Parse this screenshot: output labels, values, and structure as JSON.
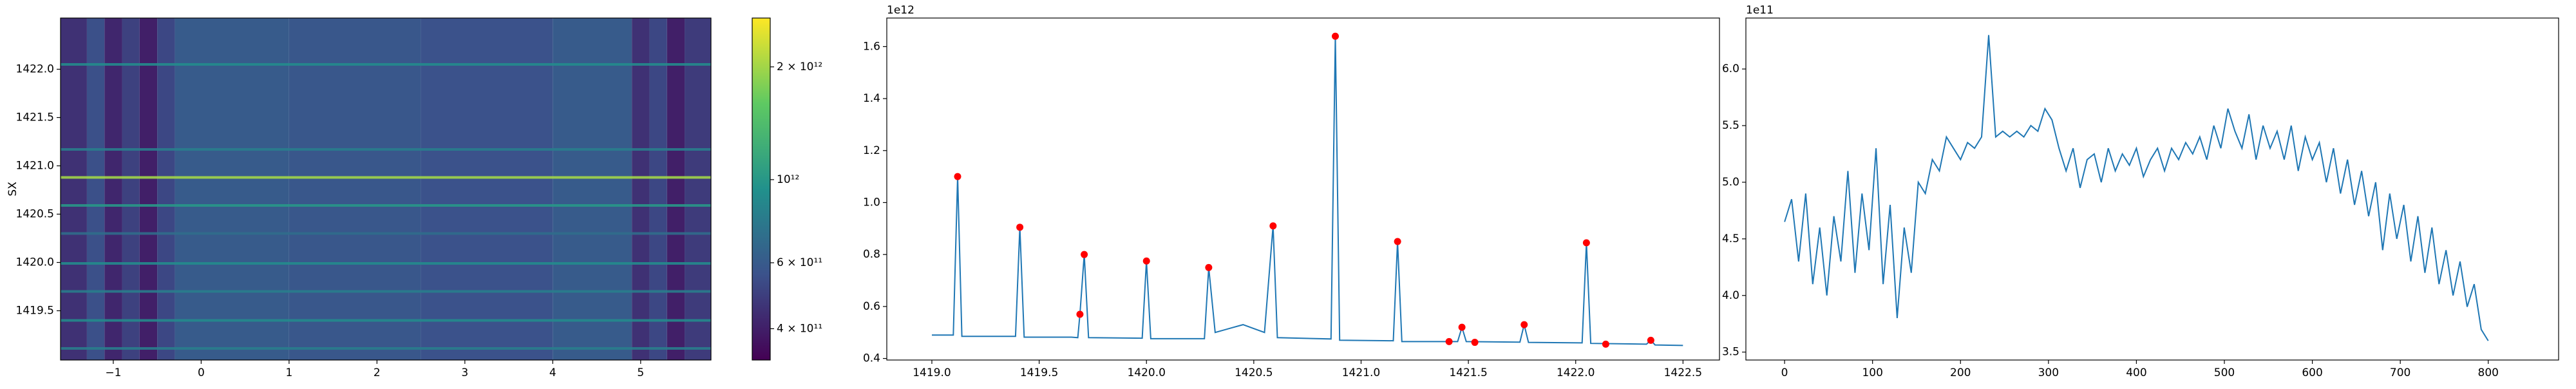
{
  "chart_data": [
    {
      "type": "heatmap",
      "ylabel": "SX",
      "colormap": "viridis",
      "log_scale": true,
      "xlim": [
        -1.6,
        5.8
      ],
      "ylim": [
        1418.99,
        1422.53
      ],
      "xticks": [
        {
          "value": -1,
          "label": "−1"
        },
        0,
        1,
        2,
        3,
        4,
        5
      ],
      "yticks": [
        1419.5,
        {
          "value": 1420,
          "label": "1420.0"
        },
        1420.5,
        {
          "value": 1421,
          "label": "1421.0"
        },
        1421.5,
        {
          "value": 1422,
          "label": "1422.0"
        }
      ],
      "clim": [
        330000000000,
        2700000000000
      ],
      "cticks": [
        {
          "value": 400000000000,
          "label": "4 × 10¹¹"
        },
        {
          "value": 600000000000,
          "label": "6 × 10¹¹"
        },
        {
          "value": 1000000000000,
          "label": "10¹²"
        },
        {
          "value": 2000000000000,
          "label": "2 × 10¹²"
        }
      ],
      "columns": {
        "edges": [
          -1.6,
          -1.3,
          -1.1,
          -0.9,
          -0.7,
          -0.5,
          -0.3,
          1.0,
          2.5,
          4.0,
          4.9,
          5.1,
          5.3,
          5.5,
          5.8
        ],
        "values": [
          450000000000,
          550000000000,
          420000000000,
          500000000000,
          400000000000,
          520000000000,
          600000000000,
          580000000000,
          560000000000,
          600000000000,
          450000000000,
          520000000000,
          400000000000,
          480000000000
        ]
      },
      "stripes": {
        "y": [
          1422.05,
          1421.17,
          1420.88,
          1420.59,
          1420.3,
          1419.99,
          1419.7,
          1419.4,
          1419.11
        ],
        "values": [
          900000000000,
          800000000000,
          2000000000000,
          1000000000000,
          700000000000,
          900000000000,
          800000000000,
          900000000000,
          800000000000
        ]
      }
    },
    {
      "type": "line",
      "offset_text": "1e12",
      "color": "#1f77b4",
      "xlim": [
        1418.79,
        1422.67
      ],
      "ylim": [
        0.394,
        1.71
      ],
      "xticks": [
        {
          "value": 1419,
          "label": "1419.0"
        },
        1419.5,
        {
          "value": 1420,
          "label": "1420.0"
        },
        1420.5,
        {
          "value": 1421,
          "label": "1421.0"
        },
        1421.5,
        {
          "value": 1422,
          "label": "1422.0"
        },
        1422.5
      ],
      "yticks": [
        0.4,
        0.6,
        0.8,
        {
          "value": 1,
          "label": "1.0"
        },
        1.2,
        1.4,
        1.6
      ],
      "x": [
        1419.0,
        1419.1,
        1419.12,
        1419.14,
        1419.39,
        1419.41,
        1419.43,
        1419.65,
        1419.68,
        1419.69,
        1419.71,
        1419.73,
        1419.98,
        1420.0,
        1420.02,
        1420.27,
        1420.29,
        1420.32,
        1420.45,
        1420.55,
        1420.59,
        1420.61,
        1420.86,
        1420.88,
        1420.9,
        1421.15,
        1421.17,
        1421.19,
        1421.45,
        1421.47,
        1421.49,
        1421.74,
        1421.76,
        1421.78,
        1422.03,
        1422.05,
        1422.07,
        1422.33,
        1422.35,
        1422.37,
        1422.5
      ],
      "values": [
        0.49,
        0.49,
        1.1,
        0.485,
        0.485,
        0.905,
        0.482,
        0.482,
        0.48,
        0.57,
        0.8,
        0.48,
        0.478,
        0.775,
        0.476,
        0.476,
        0.75,
        0.5,
        0.53,
        0.5,
        0.91,
        0.48,
        0.475,
        1.64,
        0.47,
        0.468,
        0.85,
        0.465,
        0.465,
        0.52,
        0.465,
        0.463,
        0.53,
        0.462,
        0.46,
        0.845,
        0.458,
        0.455,
        0.47,
        0.452,
        0.45
      ],
      "peaks": {
        "color": "#ff0000",
        "x": [
          1419.12,
          1419.41,
          1419.69,
          1419.71,
          1420.0,
          1420.29,
          1420.59,
          1420.88,
          1421.17,
          1421.41,
          1421.47,
          1421.53,
          1421.76,
          1422.05,
          1422.14,
          1422.35
        ],
        "values": [
          1.1,
          0.905,
          0.57,
          0.8,
          0.775,
          0.75,
          0.91,
          1.64,
          0.85,
          0.465,
          0.52,
          0.462,
          0.53,
          0.845,
          0.455,
          0.47
        ]
      }
    },
    {
      "type": "line",
      "offset_text": "1e11",
      "color": "#1f77b4",
      "xlim": [
        -44,
        880
      ],
      "ylim": [
        3.43,
        6.45
      ],
      "xticks": [
        0,
        100,
        200,
        300,
        400,
        500,
        600,
        700,
        800
      ],
      "yticks": [
        3.5,
        {
          "value": 4,
          "label": "4.0"
        },
        4.5,
        {
          "value": 5,
          "label": "5.0"
        },
        5.5,
        {
          "value": 6,
          "label": "6.0"
        }
      ],
      "x": [
        0,
        8,
        16,
        24,
        32,
        40,
        48,
        56,
        64,
        72,
        80,
        88,
        96,
        104,
        112,
        120,
        128,
        136,
        144,
        152,
        160,
        168,
        176,
        184,
        192,
        200,
        208,
        216,
        224,
        232,
        240,
        248,
        256,
        264,
        272,
        280,
        288,
        296,
        304,
        312,
        320,
        328,
        336,
        344,
        352,
        360,
        368,
        376,
        384,
        392,
        400,
        408,
        416,
        424,
        432,
        440,
        448,
        456,
        464,
        472,
        480,
        488,
        496,
        504,
        512,
        520,
        528,
        536,
        544,
        552,
        560,
        568,
        576,
        584,
        592,
        600,
        608,
        616,
        624,
        632,
        640,
        648,
        656,
        664,
        672,
        680,
        688,
        696,
        704,
        712,
        720,
        728,
        736,
        744,
        752,
        760,
        768,
        776,
        784,
        792,
        800
      ],
      "values": [
        4.65,
        4.85,
        4.3,
        4.9,
        4.1,
        4.6,
        4.0,
        4.7,
        4.3,
        5.1,
        4.2,
        4.9,
        4.4,
        5.3,
        4.1,
        4.8,
        3.8,
        4.6,
        4.2,
        5.0,
        4.9,
        5.2,
        5.1,
        5.4,
        5.3,
        5.2,
        5.35,
        5.3,
        5.4,
        6.3,
        5.4,
        5.45,
        5.4,
        5.45,
        5.4,
        5.5,
        5.45,
        5.65,
        5.55,
        5.3,
        5.1,
        5.3,
        4.95,
        5.2,
        5.25,
        5.0,
        5.3,
        5.1,
        5.25,
        5.15,
        5.3,
        5.05,
        5.2,
        5.3,
        5.1,
        5.3,
        5.2,
        5.35,
        5.25,
        5.4,
        5.2,
        5.5,
        5.3,
        5.65,
        5.45,
        5.3,
        5.6,
        5.2,
        5.5,
        5.3,
        5.45,
        5.2,
        5.5,
        5.1,
        5.4,
        5.2,
        5.35,
        5.0,
        5.3,
        4.9,
        5.2,
        4.8,
        5.1,
        4.7,
        5.0,
        4.4,
        4.9,
        4.5,
        4.8,
        4.3,
        4.7,
        4.2,
        4.6,
        4.1,
        4.4,
        4.0,
        4.3,
        3.9,
        4.1,
        3.7,
        3.6
      ]
    }
  ]
}
